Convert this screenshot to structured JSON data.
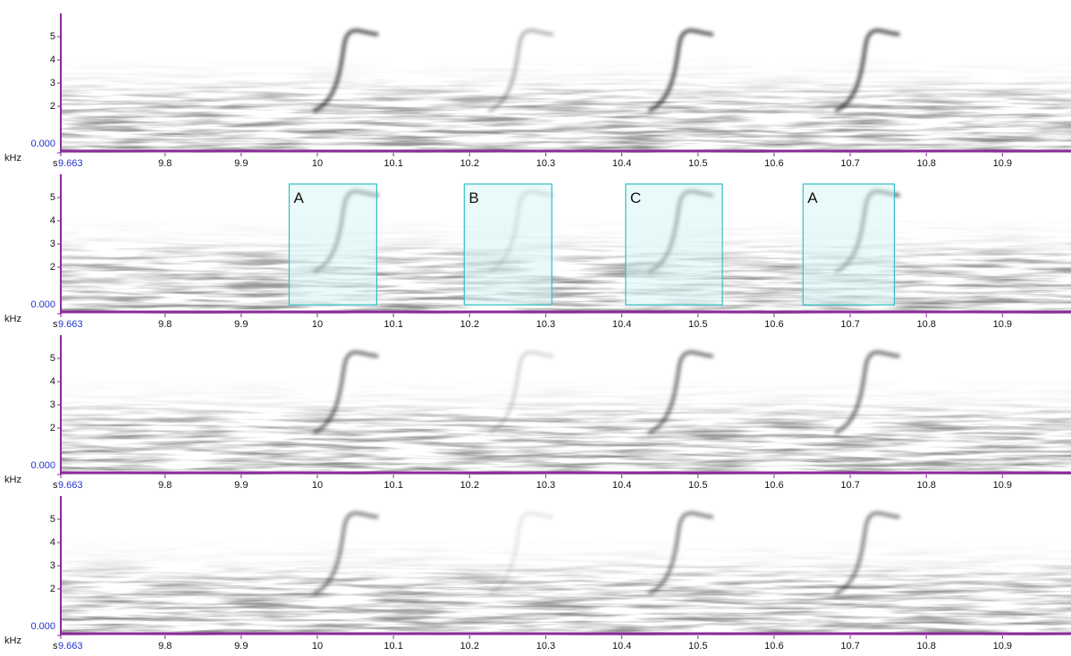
{
  "chart_data": [
    {
      "type": "spectrogram",
      "xlabel": "s",
      "ylabel": "kHz",
      "xlim": [
        9.663,
        10.99
      ],
      "ylim": [
        0,
        6
      ],
      "xticks": [
        9.663,
        9.8,
        9.9,
        10,
        10.1,
        10.2,
        10.3,
        10.4,
        10.5,
        10.6,
        10.7,
        10.8,
        10.9
      ],
      "yticks": [
        {
          "value": 0,
          "label": "0.000"
        },
        2,
        3,
        4,
        5
      ]
    },
    {
      "type": "spectrogram",
      "xlabel": "s",
      "ylabel": "kHz",
      "xlim": [
        9.663,
        10.99
      ],
      "ylim": [
        0,
        6
      ],
      "xticks": [
        9.663,
        9.8,
        9.9,
        10,
        10.1,
        10.2,
        10.3,
        10.4,
        10.5,
        10.6,
        10.7,
        10.8,
        10.9
      ],
      "yticks": [
        {
          "value": 0,
          "label": "0.000"
        },
        2,
        3,
        4,
        5
      ],
      "annotations": [
        {
          "label": "A",
          "x": [
            9.963,
            10.078
          ],
          "y": [
            0.38,
            5.58
          ]
        },
        {
          "label": "B",
          "x": [
            10.193,
            10.308
          ],
          "y": [
            0.38,
            5.58
          ]
        },
        {
          "label": "C",
          "x": [
            10.405,
            10.532
          ],
          "y": [
            0.38,
            5.58
          ]
        },
        {
          "label": "A",
          "x": [
            10.638,
            10.758
          ],
          "y": [
            0.38,
            5.58
          ]
        }
      ]
    },
    {
      "type": "spectrogram",
      "xlabel": "s",
      "ylabel": "kHz",
      "xlim": [
        9.663,
        10.99
      ],
      "ylim": [
        0,
        6
      ],
      "xticks": [
        9.663,
        9.8,
        9.9,
        10,
        10.1,
        10.2,
        10.3,
        10.4,
        10.5,
        10.6,
        10.7,
        10.8,
        10.9
      ],
      "yticks": [
        {
          "value": 0,
          "label": "0.000"
        },
        2,
        3,
        4,
        5
      ]
    },
    {
      "type": "spectrogram",
      "xlabel": "s",
      "ylabel": "kHz",
      "xlim": [
        9.663,
        10.99
      ],
      "ylim": [
        0,
        6
      ],
      "xticks": [
        9.663,
        9.8,
        9.9,
        10,
        10.1,
        10.2,
        10.3,
        10.4,
        10.5,
        10.6,
        10.7,
        10.8,
        10.9
      ],
      "yticks": [
        {
          "value": 0,
          "label": "0.000"
        },
        2,
        3,
        4,
        5
      ]
    }
  ]
}
